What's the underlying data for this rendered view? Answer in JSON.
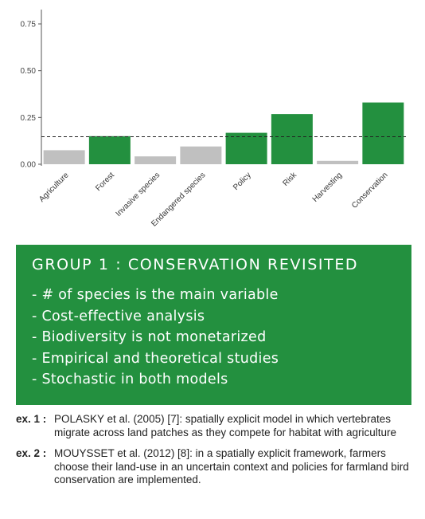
{
  "chart_data": {
    "type": "bar",
    "categories": [
      "Agriculture",
      "Forest",
      "Invasive species",
      "Endangered species",
      "Policy",
      "Risk",
      "Harvesting",
      "Conservation"
    ],
    "values": [
      0.075,
      0.15,
      0.042,
      0.095,
      0.168,
      0.268,
      0.018,
      0.33
    ],
    "highlighted": [
      false,
      true,
      false,
      false,
      true,
      true,
      false,
      true
    ],
    "yticks": [
      0.0,
      0.25,
      0.5,
      0.75
    ],
    "ytick_labels": [
      "0.00",
      "0.25",
      "0.50",
      "0.75"
    ],
    "ylim": [
      0,
      0.8
    ],
    "reference_line": 0.147,
    "colors": {
      "highlight": "#23903f",
      "muted": "#c0c0c0",
      "axis": "#555555",
      "reference_line": "#222222"
    },
    "title": "",
    "xlabel": "",
    "ylabel": ""
  },
  "group": {
    "title": "GROUP 1 : CONSERVATION REVISITED",
    "items": [
      "- # of species is the main variable",
      "- Cost-effective analysis",
      "- Biodiversity is not monetarized",
      "- Empirical and theoretical studies",
      "- Stochastic in both models"
    ],
    "background": "#23903f"
  },
  "examples": [
    {
      "label": "ex. 1 :",
      "text": "POLASKY et al. (2005) [7]: spatially explicit model in which vertebrates migrate across land patches as they compete for habitat with agriculture"
    },
    {
      "label": "ex. 2 :",
      "text": "MOUYSSET et al. (2012) [8]:  in a spatially explicit framework, farmers choose their land-use in an uncertain context and policies for farmland bird conservation are implemented."
    }
  ]
}
